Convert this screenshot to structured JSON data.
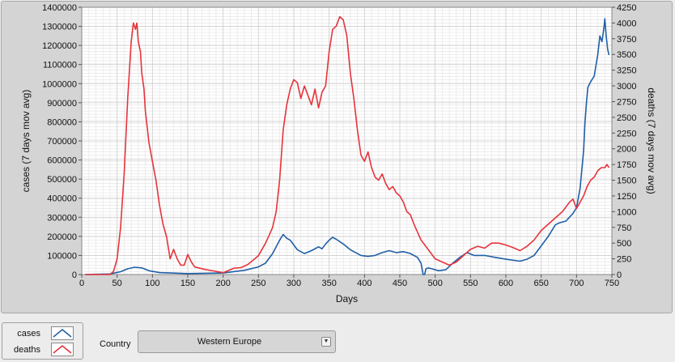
{
  "chart_data": {
    "type": "line",
    "xlabel": "Days",
    "ylabel_left": "cases  (7 days mov avg)",
    "ylabel_right": "deaths  (7 days mov avg)",
    "xlim": [
      0,
      750
    ],
    "ylim_left": [
      0,
      1400000
    ],
    "ylim_right": [
      0,
      4250
    ],
    "x_ticks": [
      0,
      50,
      100,
      150,
      200,
      250,
      300,
      350,
      400,
      450,
      500,
      550,
      600,
      650,
      700,
      750
    ],
    "y_ticks_left": [
      0,
      100000,
      200000,
      300000,
      400000,
      500000,
      600000,
      700000,
      800000,
      900000,
      1000000,
      1100000,
      1200000,
      1300000,
      1400000
    ],
    "y_ticks_right": [
      0,
      250,
      500,
      750,
      1000,
      1250,
      1500,
      1750,
      2000,
      2250,
      2500,
      2750,
      3000,
      3250,
      3500,
      3750,
      4000,
      4250
    ],
    "grid": true,
    "series": [
      {
        "name": "cases",
        "axis": "left",
        "color": "#1f5fa6",
        "x": [
          5,
          40,
          55,
          65,
          75,
          85,
          95,
          110,
          150,
          200,
          230,
          250,
          260,
          270,
          280,
          285,
          290,
          295,
          305,
          315,
          325,
          335,
          340,
          345,
          350,
          355,
          360,
          370,
          380,
          395,
          405,
          415,
          425,
          435,
          445,
          455,
          465,
          475,
          480,
          483,
          485,
          487,
          490,
          495,
          505,
          515,
          525,
          535,
          545,
          555,
          570,
          585,
          600,
          610,
          620,
          630,
          640,
          650,
          660,
          665,
          670,
          675,
          685,
          695,
          700,
          705,
          710,
          712,
          714,
          716,
          720,
          725,
          730,
          733,
          736,
          739,
          740,
          742,
          744,
          746
        ],
        "y": [
          0,
          3000,
          15000,
          30000,
          38000,
          35000,
          20000,
          10000,
          5000,
          8000,
          22000,
          40000,
          60000,
          110000,
          180000,
          210000,
          190000,
          180000,
          130000,
          110000,
          125000,
          145000,
          135000,
          160000,
          180000,
          195000,
          185000,
          160000,
          130000,
          100000,
          95000,
          100000,
          115000,
          125000,
          115000,
          120000,
          110000,
          90000,
          60000,
          0,
          0,
          30000,
          35000,
          30000,
          20000,
          25000,
          60000,
          90000,
          115000,
          100000,
          100000,
          90000,
          80000,
          75000,
          70000,
          80000,
          100000,
          150000,
          200000,
          230000,
          260000,
          270000,
          280000,
          320000,
          350000,
          450000,
          650000,
          800000,
          900000,
          980000,
          1010000,
          1040000,
          1150000,
          1250000,
          1220000,
          1300000,
          1340000,
          1250000,
          1180000,
          1150000
        ]
      },
      {
        "name": "deaths",
        "axis": "right",
        "color": "#e8333b",
        "x": [
          5,
          40,
          45,
          50,
          55,
          60,
          65,
          70,
          73,
          76,
          78,
          80,
          83,
          85,
          88,
          90,
          95,
          100,
          105,
          110,
          115,
          120,
          125,
          130,
          135,
          140,
          145,
          150,
          155,
          160,
          175,
          200,
          215,
          225,
          235,
          250,
          260,
          265,
          270,
          275,
          280,
          285,
          290,
          295,
          300,
          305,
          310,
          315,
          320,
          325,
          330,
          335,
          340,
          345,
          350,
          355,
          360,
          365,
          370,
          375,
          380,
          385,
          390,
          395,
          400,
          405,
          410,
          415,
          420,
          425,
          430,
          435,
          440,
          445,
          450,
          455,
          460,
          465,
          470,
          480,
          490,
          500,
          510,
          520,
          530,
          540,
          550,
          560,
          570,
          580,
          590,
          600,
          610,
          620,
          630,
          640,
          650,
          660,
          670,
          680,
          690,
          695,
          700,
          705,
          710,
          715,
          720,
          725,
          730,
          735,
          740,
          743,
          746
        ],
        "y": [
          0,
          0,
          50,
          250,
          750,
          1600,
          2800,
          3700,
          4000,
          3900,
          4000,
          3700,
          3550,
          3200,
          2950,
          2600,
          2100,
          1800,
          1500,
          1100,
          800,
          600,
          250,
          400,
          250,
          150,
          150,
          320,
          200,
          120,
          80,
          30,
          100,
          110,
          160,
          300,
          500,
          620,
          750,
          1000,
          1500,
          2300,
          2700,
          2950,
          3100,
          3050,
          2800,
          3000,
          2850,
          2700,
          2950,
          2650,
          2900,
          3000,
          3550,
          3900,
          3950,
          4100,
          4050,
          3800,
          3200,
          2800,
          2300,
          1900,
          1800,
          1950,
          1700,
          1550,
          1500,
          1600,
          1450,
          1350,
          1400,
          1300,
          1250,
          1150,
          1000,
          950,
          800,
          550,
          400,
          250,
          200,
          150,
          200,
          300,
          400,
          450,
          420,
          500,
          500,
          470,
          430,
          380,
          450,
          550,
          700,
          800,
          900,
          1000,
          1150,
          1200,
          1050,
          1150,
          1250,
          1400,
          1500,
          1550,
          1650,
          1700,
          1700,
          1750,
          1700
        ]
      }
    ]
  },
  "legend": {
    "items": [
      {
        "label": "cases",
        "color": "#1f5fa6"
      },
      {
        "label": "deaths",
        "color": "#e8333b"
      }
    ]
  },
  "controls": {
    "country_label": "Country",
    "country_value": "Western Europe"
  }
}
